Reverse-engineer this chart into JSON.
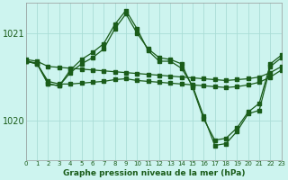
{
  "title": "Graphe pression niveau de la mer (hPa)",
  "bg_color": "#cdf4ef",
  "line_color": "#1a5c1a",
  "grid_color": "#aaddd6",
  "x_min": 0,
  "x_max": 23,
  "y_min": 1019.55,
  "y_max": 1021.35,
  "yticks": [
    1020,
    1021
  ],
  "series": [
    {
      "x": [
        0,
        1,
        2,
        3,
        4,
        5,
        6,
        7,
        8,
        9,
        10,
        11,
        12,
        13,
        14,
        15,
        16,
        17,
        18,
        19,
        20,
        21,
        22,
        23
      ],
      "y": [
        1020.7,
        1020.68,
        1020.62,
        1020.61,
        1020.6,
        1020.59,
        1020.58,
        1020.57,
        1020.56,
        1020.55,
        1020.54,
        1020.53,
        1020.52,
        1020.51,
        1020.5,
        1020.49,
        1020.48,
        1020.47,
        1020.46,
        1020.47,
        1020.48,
        1020.5,
        1020.55,
        1020.62
      ]
    },
    {
      "x": [
        0,
        1,
        2,
        3,
        4,
        5,
        6,
        7,
        8,
        9,
        10,
        11,
        12,
        13,
        14,
        15,
        16,
        17,
        18,
        19,
        20,
        21,
        22,
        23
      ],
      "y": [
        1020.68,
        1020.65,
        1020.45,
        1020.42,
        1020.42,
        1020.43,
        1020.44,
        1020.45,
        1020.47,
        1020.48,
        1020.46,
        1020.45,
        1020.44,
        1020.43,
        1020.42,
        1020.41,
        1020.4,
        1020.39,
        1020.38,
        1020.39,
        1020.41,
        1020.44,
        1020.5,
        1020.58
      ]
    },
    {
      "x": [
        0,
        1,
        2,
        3,
        4,
        5,
        6,
        7,
        8,
        9,
        10,
        11,
        12,
        13,
        14,
        15,
        16,
        17,
        18,
        19,
        20,
        21,
        22,
        23
      ],
      "y": [
        1020.68,
        1020.66,
        1020.42,
        1020.4,
        1020.55,
        1020.65,
        1020.72,
        1020.82,
        1021.05,
        1021.22,
        1021.0,
        1020.82,
        1020.72,
        1020.7,
        1020.65,
        1020.38,
        1020.02,
        1019.78,
        1019.8,
        1019.92,
        1020.1,
        1020.2,
        1020.65,
        1020.75
      ]
    },
    {
      "x": [
        0,
        1,
        2,
        3,
        4,
        5,
        6,
        7,
        8,
        9,
        10,
        11,
        12,
        13,
        14,
        15,
        16,
        17,
        18,
        19,
        20,
        21,
        22,
        23
      ],
      "y": [
        1020.68,
        1020.65,
        1020.42,
        1020.4,
        1020.58,
        1020.7,
        1020.78,
        1020.88,
        1021.1,
        1021.26,
        1021.05,
        1020.8,
        1020.68,
        1020.68,
        1020.6,
        1020.4,
        1020.05,
        1019.72,
        1019.74,
        1019.88,
        1020.08,
        1020.12,
        1020.62,
        1020.72
      ]
    }
  ]
}
